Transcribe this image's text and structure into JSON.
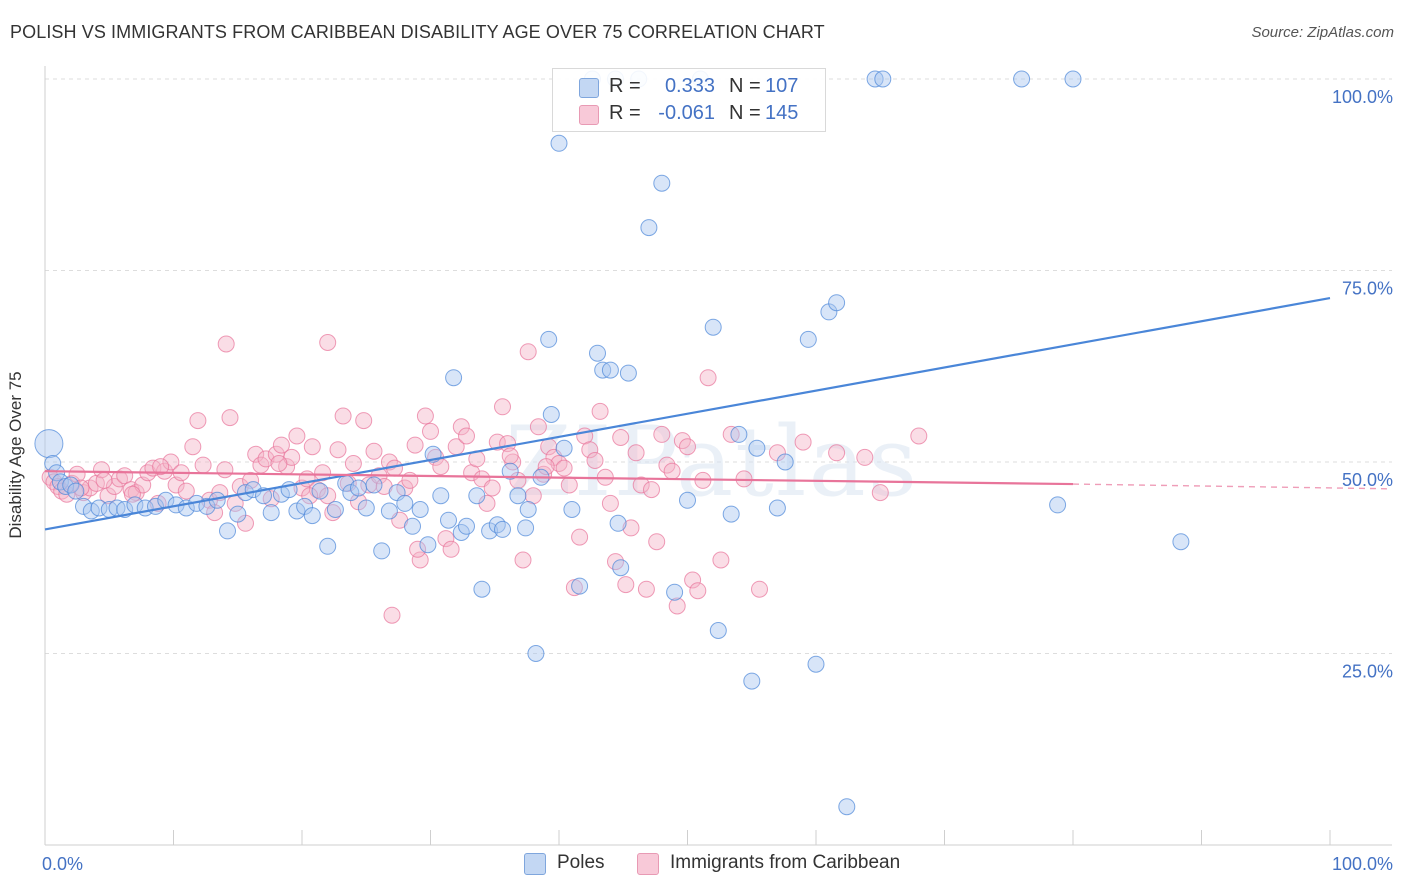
{
  "title": "POLISH VS IMMIGRANTS FROM CARIBBEAN DISABILITY AGE OVER 75 CORRELATION CHART",
  "source": "Source: ZipAtlas.com",
  "watermark": "ZIPatlas",
  "legend_top": {
    "rows": [
      {
        "r_label": "R =",
        "r_value": "0.333",
        "n_label": "N =",
        "n_value": "107",
        "color": "#a9c6f0"
      },
      {
        "r_label": "R =",
        "r_value": "-0.061",
        "n_label": "N =",
        "n_value": "145",
        "color": "#f5b3c8"
      }
    ]
  },
  "legend_bottom": {
    "items": [
      {
        "label": "Poles",
        "color": "#a9c6f0"
      },
      {
        "label": "Immigrants from Caribbean",
        "color": "#f5b3c8"
      }
    ]
  },
  "chart_data": {
    "type": "scatter",
    "title": "POLISH VS IMMIGRANTS FROM CARIBBEAN DISABILITY AGE OVER 75 CORRELATION CHART",
    "ylabel": "Disability Age Over 75",
    "xlabel": "",
    "xlim": [
      0,
      100
    ],
    "ylim": [
      0,
      102
    ],
    "x_ticks": [
      0,
      10,
      20,
      30,
      40,
      50,
      60,
      70,
      80,
      90,
      100
    ],
    "x_tick_labels": [
      {
        "value": 0,
        "label": "0.0%"
      },
      {
        "value": 100,
        "label": "100.0%"
      }
    ],
    "y_ticks": [
      {
        "value": 25,
        "label": "25.0%"
      },
      {
        "value": 50,
        "label": "50.0%"
      },
      {
        "value": 75,
        "label": "75.0%"
      },
      {
        "value": 100,
        "label": "100.0%"
      }
    ],
    "grid": true,
    "legend_position": "top-center",
    "series": [
      {
        "name": "Poles",
        "color": "#4a86d8",
        "fill": "#a9c6f0",
        "r": 0.333,
        "n": 107,
        "trend": {
          "x0": 0,
          "y0": 41.2,
          "x1": 100,
          "y1": 71.4,
          "dash_from": null
        },
        "points": [
          [
            0.3,
            52.4
          ],
          [
            0.6,
            49.8
          ],
          [
            0.9,
            48.6
          ],
          [
            1.2,
            47.4
          ],
          [
            1.6,
            46.8
          ],
          [
            2.0,
            47.0
          ],
          [
            2.4,
            46.2
          ],
          [
            3.0,
            44.2
          ],
          [
            3.6,
            43.6
          ],
          [
            4.2,
            44.0
          ],
          [
            5.0,
            43.8
          ],
          [
            5.6,
            44.0
          ],
          [
            6.2,
            43.8
          ],
          [
            7.0,
            44.4
          ],
          [
            7.8,
            44.0
          ],
          [
            8.6,
            44.2
          ],
          [
            9.4,
            45.0
          ],
          [
            10.2,
            44.4
          ],
          [
            11.0,
            44.0
          ],
          [
            11.8,
            44.6
          ],
          [
            12.6,
            44.2
          ],
          [
            13.4,
            45.0
          ],
          [
            14.2,
            41.0
          ],
          [
            15.0,
            43.2
          ],
          [
            15.6,
            46.0
          ],
          [
            16.2,
            46.4
          ],
          [
            17.0,
            45.6
          ],
          [
            17.6,
            43.4
          ],
          [
            18.4,
            45.8
          ],
          [
            19.0,
            46.4
          ],
          [
            19.6,
            43.6
          ],
          [
            20.2,
            44.2
          ],
          [
            20.8,
            43.0
          ],
          [
            21.4,
            46.2
          ],
          [
            22.0,
            39.0
          ],
          [
            22.6,
            43.8
          ],
          [
            23.4,
            47.2
          ],
          [
            23.8,
            46.0
          ],
          [
            24.4,
            46.6
          ],
          [
            25.0,
            44.0
          ],
          [
            25.6,
            47.0
          ],
          [
            26.2,
            38.4
          ],
          [
            26.8,
            43.6
          ],
          [
            27.4,
            46.0
          ],
          [
            28.0,
            44.6
          ],
          [
            28.6,
            41.6
          ],
          [
            29.2,
            43.8
          ],
          [
            29.8,
            39.2
          ],
          [
            30.2,
            51.0
          ],
          [
            30.8,
            45.6
          ],
          [
            31.4,
            42.4
          ],
          [
            31.8,
            61.0
          ],
          [
            32.4,
            40.8
          ],
          [
            32.8,
            41.6
          ],
          [
            33.6,
            45.6
          ],
          [
            34.0,
            33.4
          ],
          [
            34.6,
            41.0
          ],
          [
            35.2,
            41.8
          ],
          [
            35.6,
            41.2
          ],
          [
            36.2,
            48.8
          ],
          [
            36.8,
            45.6
          ],
          [
            37.4,
            41.4
          ],
          [
            37.6,
            43.8
          ],
          [
            38.2,
            25.0
          ],
          [
            38.6,
            48.0
          ],
          [
            39.2,
            66.0
          ],
          [
            39.4,
            56.2
          ],
          [
            40.0,
            91.6
          ],
          [
            40.4,
            51.8
          ],
          [
            41.0,
            43.8
          ],
          [
            41.6,
            33.8
          ],
          [
            42.6,
            100.0
          ],
          [
            43.0,
            64.2
          ],
          [
            43.4,
            62.0
          ],
          [
            44.0,
            62.0
          ],
          [
            44.4,
            100.0
          ],
          [
            44.6,
            42.0
          ],
          [
            44.8,
            36.2
          ],
          [
            45.4,
            61.6
          ],
          [
            46.2,
            100.0
          ],
          [
            47.0,
            80.6
          ],
          [
            48.0,
            86.4
          ],
          [
            49.0,
            33.0
          ],
          [
            50.0,
            45.0
          ],
          [
            51.0,
            100.0
          ],
          [
            52.0,
            67.6
          ],
          [
            52.4,
            28.0
          ],
          [
            53.4,
            43.2
          ],
          [
            54.0,
            53.6
          ],
          [
            55.0,
            21.4
          ],
          [
            55.4,
            51.8
          ],
          [
            57.0,
            44.0
          ],
          [
            57.6,
            50.0
          ],
          [
            59.4,
            66.0
          ],
          [
            60.0,
            23.6
          ],
          [
            61.0,
            69.6
          ],
          [
            61.6,
            70.8
          ],
          [
            62.4,
            5.0
          ],
          [
            64.6,
            100.0
          ],
          [
            65.2,
            100.0
          ],
          [
            76.0,
            100.0
          ],
          [
            80.0,
            100.0
          ],
          [
            78.8,
            44.4
          ],
          [
            88.4,
            39.6
          ]
        ]
      },
      {
        "name": "Immigrants from Caribbean",
        "color": "#e8749a",
        "fill": "#f5b3c8",
        "r": -0.061,
        "n": 145,
        "trend": {
          "x0": 0,
          "y0": 48.8,
          "x1": 100,
          "y1": 46.7,
          "dash_from": 80
        },
        "points": [
          [
            0.4,
            48.0
          ],
          [
            0.7,
            47.4
          ],
          [
            1.0,
            46.8
          ],
          [
            1.3,
            46.2
          ],
          [
            1.7,
            45.8
          ],
          [
            2.1,
            47.2
          ],
          [
            2.5,
            48.4
          ],
          [
            3.0,
            46.0
          ],
          [
            3.5,
            46.6
          ],
          [
            4.0,
            47.2
          ],
          [
            4.4,
            49.0
          ],
          [
            4.9,
            45.6
          ],
          [
            5.4,
            46.8
          ],
          [
            5.8,
            47.8
          ],
          [
            6.2,
            48.2
          ],
          [
            6.7,
            46.4
          ],
          [
            7.1,
            46.0
          ],
          [
            7.6,
            47.0
          ],
          [
            8.0,
            48.6
          ],
          [
            8.4,
            49.2
          ],
          [
            8.8,
            44.6
          ],
          [
            9.3,
            48.8
          ],
          [
            9.8,
            50.0
          ],
          [
            10.2,
            47.0
          ],
          [
            10.6,
            48.6
          ],
          [
            11.0,
            46.2
          ],
          [
            11.5,
            52.0
          ],
          [
            11.9,
            55.4
          ],
          [
            12.3,
            49.6
          ],
          [
            12.8,
            45.0
          ],
          [
            13.2,
            43.4
          ],
          [
            13.6,
            46.0
          ],
          [
            14.0,
            49.0
          ],
          [
            14.4,
            55.8
          ],
          [
            14.8,
            44.6
          ],
          [
            15.2,
            46.8
          ],
          [
            14.1,
            65.4
          ],
          [
            15.6,
            42.0
          ],
          [
            16.0,
            47.6
          ],
          [
            16.4,
            51.0
          ],
          [
            16.8,
            49.6
          ],
          [
            17.2,
            50.4
          ],
          [
            17.6,
            45.2
          ],
          [
            18.0,
            51.0
          ],
          [
            18.4,
            52.2
          ],
          [
            18.8,
            49.4
          ],
          [
            19.2,
            50.6
          ],
          [
            19.6,
            53.4
          ],
          [
            20.0,
            46.6
          ],
          [
            20.4,
            47.8
          ],
          [
            20.8,
            52.0
          ],
          [
            21.2,
            46.4
          ],
          [
            21.6,
            48.6
          ],
          [
            22.0,
            45.6
          ],
          [
            22.4,
            43.4
          ],
          [
            22.8,
            51.6
          ],
          [
            23.2,
            56.0
          ],
          [
            23.6,
            47.2
          ],
          [
            24.0,
            49.8
          ],
          [
            24.4,
            44.8
          ],
          [
            24.8,
            55.4
          ],
          [
            22.0,
            65.6
          ],
          [
            25.2,
            47.0
          ],
          [
            25.6,
            51.4
          ],
          [
            26.0,
            48.2
          ],
          [
            26.4,
            46.8
          ],
          [
            26.8,
            50.0
          ],
          [
            27.2,
            49.2
          ],
          [
            27.6,
            42.4
          ],
          [
            28.0,
            46.6
          ],
          [
            28.4,
            47.6
          ],
          [
            28.8,
            52.2
          ],
          [
            29.2,
            37.2
          ],
          [
            29.6,
            56.0
          ],
          [
            30.0,
            54.0
          ],
          [
            30.4,
            50.6
          ],
          [
            30.8,
            49.4
          ],
          [
            31.2,
            40.0
          ],
          [
            31.6,
            38.6
          ],
          [
            32.0,
            52.0
          ],
          [
            32.4,
            54.6
          ],
          [
            32.8,
            53.4
          ],
          [
            33.2,
            48.6
          ],
          [
            33.6,
            50.4
          ],
          [
            34.0,
            47.8
          ],
          [
            34.4,
            44.6
          ],
          [
            34.8,
            46.6
          ],
          [
            35.2,
            52.6
          ],
          [
            35.6,
            57.2
          ],
          [
            36.0,
            52.4
          ],
          [
            36.4,
            50.0
          ],
          [
            36.8,
            47.6
          ],
          [
            37.2,
            37.2
          ],
          [
            37.6,
            64.4
          ],
          [
            38.0,
            45.6
          ],
          [
            38.4,
            54.6
          ],
          [
            38.8,
            48.4
          ],
          [
            39.2,
            52.0
          ],
          [
            39.6,
            50.6
          ],
          [
            40.0,
            49.8
          ],
          [
            40.4,
            49.2
          ],
          [
            40.8,
            47.0
          ],
          [
            41.2,
            33.6
          ],
          [
            41.6,
            40.2
          ],
          [
            42.0,
            53.4
          ],
          [
            42.4,
            51.6
          ],
          [
            42.8,
            50.2
          ],
          [
            43.2,
            56.6
          ],
          [
            43.6,
            48.0
          ],
          [
            44.0,
            44.6
          ],
          [
            44.4,
            37.0
          ],
          [
            44.8,
            53.2
          ],
          [
            45.2,
            34.0
          ],
          [
            45.6,
            41.4
          ],
          [
            46.0,
            51.2
          ],
          [
            46.4,
            47.0
          ],
          [
            46.8,
            33.4
          ],
          [
            47.2,
            46.4
          ],
          [
            47.6,
            39.6
          ],
          [
            48.0,
            53.6
          ],
          [
            48.4,
            49.6
          ],
          [
            48.8,
            48.8
          ],
          [
            49.2,
            31.2
          ],
          [
            49.6,
            52.8
          ],
          [
            50.0,
            52.0
          ],
          [
            50.4,
            34.6
          ],
          [
            50.8,
            33.2
          ],
          [
            51.2,
            47.6
          ],
          [
            51.6,
            61.0
          ],
          [
            52.6,
            37.2
          ],
          [
            53.4,
            53.6
          ],
          [
            54.4,
            47.8
          ],
          [
            55.6,
            33.4
          ],
          [
            57.0,
            51.2
          ],
          [
            59.0,
            52.6
          ],
          [
            61.6,
            51.2
          ],
          [
            63.8,
            50.6
          ],
          [
            65.0,
            46.0
          ],
          [
            68.0,
            53.4
          ],
          [
            39.0,
            49.4
          ],
          [
            36.2,
            50.8
          ],
          [
            29.0,
            38.6
          ],
          [
            27.0,
            30.0
          ],
          [
            20.6,
            45.6
          ],
          [
            18.2,
            49.8
          ],
          [
            9.0,
            49.4
          ],
          [
            6.8,
            45.8
          ],
          [
            4.6,
            47.6
          ],
          [
            2.8,
            46.6
          ]
        ]
      }
    ]
  }
}
